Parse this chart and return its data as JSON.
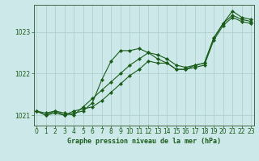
{
  "title": "Graphe pression niveau de la mer (hPa)",
  "bg_color": "#cce8e8",
  "grid_color": "#aacccc",
  "line_color": "#1a5c1a",
  "x_values": [
    0,
    1,
    2,
    3,
    4,
    5,
    6,
    7,
    8,
    9,
    10,
    11,
    12,
    13,
    14,
    15,
    16,
    17,
    18,
    19,
    20,
    21,
    22,
    23
  ],
  "series1": [
    1021.1,
    1021.0,
    1021.1,
    1021.05,
    1021.0,
    1021.2,
    1021.4,
    1021.6,
    1021.8,
    1022.0,
    1022.2,
    1022.35,
    1022.5,
    1022.45,
    1022.35,
    1022.2,
    1022.15,
    1022.2,
    1022.25,
    1022.85,
    1023.2,
    1023.4,
    1023.3,
    1023.25
  ],
  "series2": [
    1021.1,
    1021.0,
    1021.05,
    1021.0,
    1021.05,
    1021.1,
    1021.3,
    1021.85,
    1022.3,
    1022.55,
    1022.55,
    1022.6,
    1022.5,
    1022.35,
    1022.25,
    1022.1,
    1022.1,
    1022.2,
    1022.25,
    1022.85,
    1023.2,
    1023.5,
    1023.35,
    1023.3
  ],
  "series3": [
    1021.1,
    1021.05,
    1021.1,
    1021.0,
    1021.1,
    1021.15,
    1021.2,
    1021.35,
    1021.55,
    1021.75,
    1021.95,
    1022.1,
    1022.3,
    1022.25,
    1022.25,
    1022.1,
    1022.1,
    1022.15,
    1022.2,
    1022.8,
    1023.15,
    1023.35,
    1023.25,
    1023.2
  ],
  "xlim": [
    -0.3,
    23.3
  ],
  "ylim": [
    1020.75,
    1023.65
  ],
  "yticks": [
    1021,
    1022,
    1023
  ],
  "xticks": [
    0,
    1,
    2,
    3,
    4,
    5,
    6,
    7,
    8,
    9,
    10,
    11,
    12,
    13,
    14,
    15,
    16,
    17,
    18,
    19,
    20,
    21,
    22,
    23
  ],
  "title_fontsize": 6,
  "tick_fontsize": 5.5
}
